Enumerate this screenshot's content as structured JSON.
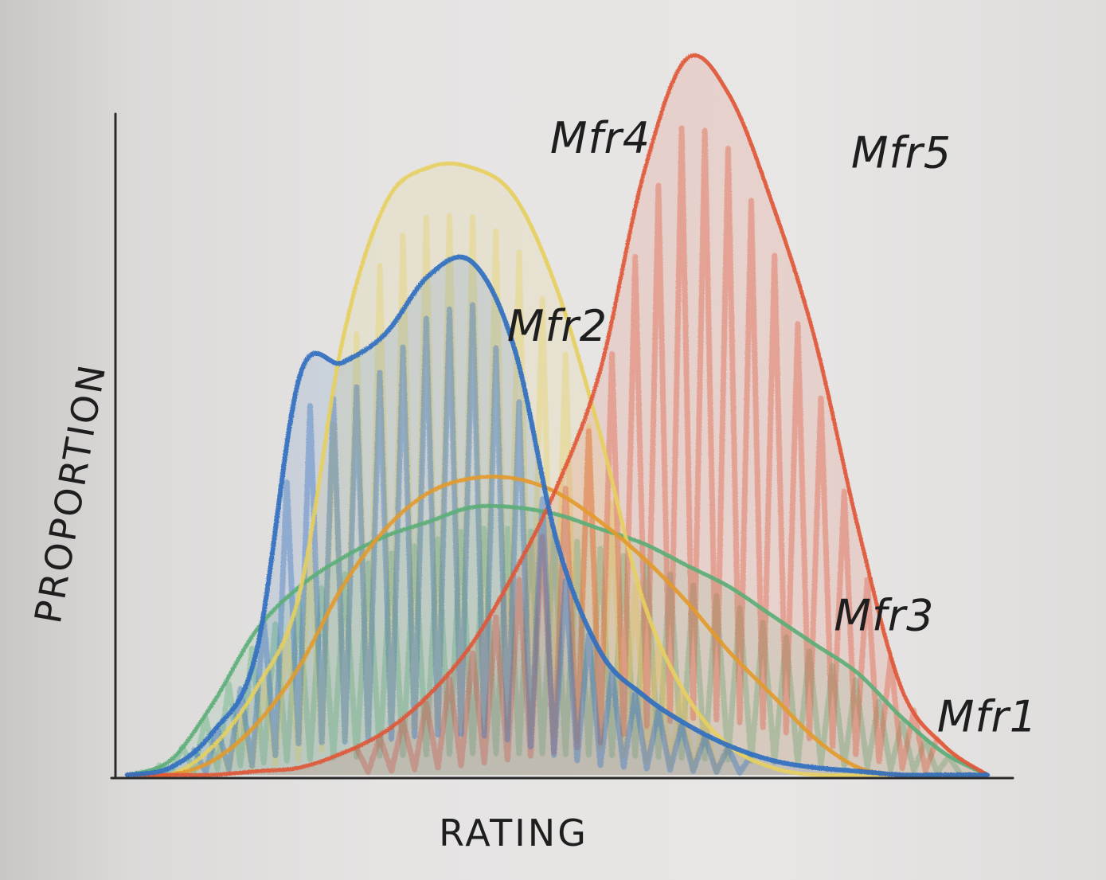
{
  "chart_data": {
    "type": "area",
    "title": "",
    "xlabel": "RATING",
    "ylabel": "PROPORTION",
    "xlim": [
      0,
      100
    ],
    "ylim": [
      0,
      100
    ],
    "grid": false,
    "legend": "labels next to curves",
    "x": [
      0,
      5,
      10,
      15,
      20,
      25,
      30,
      35,
      40,
      45,
      50,
      55,
      60,
      65,
      70,
      75,
      80,
      85,
      90,
      95,
      100
    ],
    "series": [
      {
        "name": "Mfr1",
        "color": "#5cae78",
        "hatched": true,
        "values": [
          0,
          2,
          10,
          20,
          26,
          30,
          33,
          35,
          37,
          37,
          36,
          34,
          32,
          29,
          26,
          22,
          18,
          14,
          8,
          3,
          0
        ]
      },
      {
        "name": "Mfr2",
        "color": "#2f6fc0",
        "hatched": true,
        "values": [
          0,
          1,
          6,
          17,
          55,
          57,
          61,
          69,
          71,
          59,
          32,
          17,
          11,
          7,
          4,
          2,
          1,
          0.5,
          0,
          0,
          0
        ]
      },
      {
        "name": "Mfr3",
        "color": "#e39a2e",
        "hatched": false,
        "values": [
          0,
          0,
          2,
          7,
          15,
          26,
          34,
          39,
          41,
          41,
          39,
          35,
          30,
          24,
          17,
          11,
          5,
          1,
          0,
          0,
          0
        ]
      },
      {
        "name": "Mfr4",
        "color": "#e6cf5f",
        "hatched": true,
        "values": [
          0,
          0,
          4,
          12,
          25,
          60,
          79,
          84,
          84,
          80,
          67,
          47,
          24,
          11,
          4,
          1,
          0,
          0,
          0,
          0,
          0
        ]
      },
      {
        "name": "Mfr5",
        "color": "#e05636",
        "hatched": true,
        "values": [
          0,
          0,
          0,
          0.5,
          1,
          3,
          6,
          11,
          18,
          28,
          40,
          56,
          83,
          99,
          94,
          79,
          60,
          34,
          12,
          4,
          0
        ]
      }
    ]
  }
}
